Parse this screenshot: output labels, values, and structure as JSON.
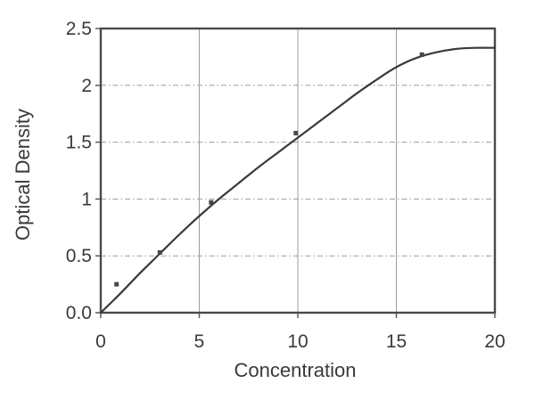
{
  "page": {
    "background": "#ffffff"
  },
  "chart_data": {
    "type": "line",
    "title": "",
    "xlabel": "Concentration",
    "ylabel": "Optical Density",
    "xlim": [
      0,
      20
    ],
    "ylim": [
      0,
      2.5
    ],
    "x_ticks": {
      "values": [
        0,
        5,
        10,
        15,
        20
      ],
      "labels": [
        "0",
        "5",
        "10",
        "15",
        "20"
      ]
    },
    "y_ticks": {
      "values": [
        0,
        0.5,
        1,
        1.5,
        2,
        2.5
      ],
      "labels": [
        "0.0",
        "0.5",
        "1",
        "1.5",
        "2",
        "2.5"
      ]
    },
    "grid": {
      "vertical_lines_at": [
        5,
        10,
        15
      ],
      "vertical_style": "solid",
      "horizontal_lines_at": [
        0.5,
        1.0,
        1.5,
        2.0
      ],
      "horizontal_style": "dash-dot",
      "color": "#9c9c9c"
    },
    "frame_color": "#4a4a4a",
    "tick_color": "#5a5a5a",
    "text_color": "#3a3a3a",
    "legend": "none",
    "series": [
      {
        "name": "fitted-curve",
        "type": "line",
        "color": "#3a3a3a",
        "line_width": 2.2,
        "x": [
          0,
          1,
          2,
          3,
          4,
          5,
          6,
          7,
          8,
          9,
          10,
          11,
          12,
          13,
          14,
          15,
          16,
          17,
          18,
          19,
          20
        ],
        "y": [
          0.0,
          0.17,
          0.35,
          0.52,
          0.69,
          0.85,
          1.0,
          1.14,
          1.28,
          1.41,
          1.54,
          1.67,
          1.8,
          1.93,
          2.05,
          2.16,
          2.24,
          2.29,
          2.32,
          2.33,
          2.33
        ]
      },
      {
        "name": "data-points",
        "type": "scatter",
        "color": "#474747",
        "marker": "square",
        "marker_size": 5,
        "x": [
          0.8,
          3.0,
          5.6,
          9.9,
          16.3
        ],
        "y": [
          0.25,
          0.53,
          0.97,
          1.58,
          2.27
        ]
      }
    ]
  }
}
